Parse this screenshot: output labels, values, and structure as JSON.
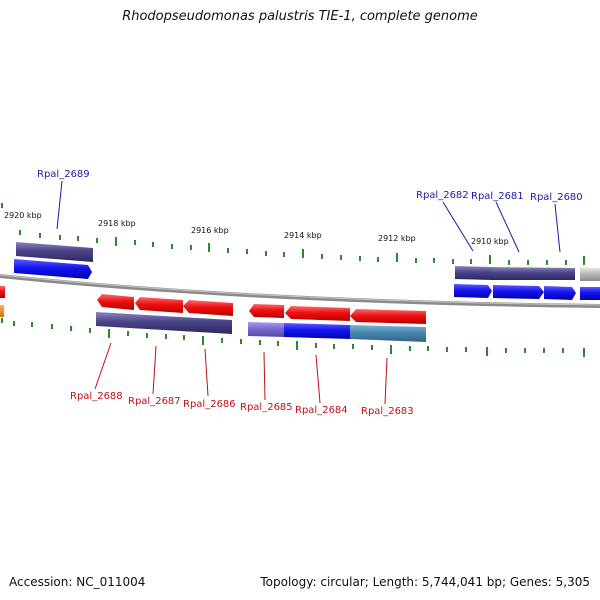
{
  "title": "Rhodopseudomonas palustris TIE-1, complete genome",
  "footer": {
    "accession": "Accession: NC_011004",
    "summary": "Topology: circular; Length: 5,744,041 bp; Genes: 5,305"
  },
  "colors": {
    "background": "#ffffff",
    "forward_label": "#1a1aa6",
    "reverse_label": "#c0101a",
    "gene_red": "#ee1111",
    "gene_blue": "#1515ee",
    "gene_navy": "#4a4488",
    "gene_lilac": "#7a6ad0",
    "gene_teal": "#4a88b0",
    "gene_gray": "#b8b8b8",
    "gene_orange": "#ff8800",
    "tick_green": "#2a8a2a",
    "backbone": "#8a8a8a"
  },
  "scale_labels": [
    "2920 kbp",
    "2918 kbp",
    "2916 kbp",
    "2914 kbp",
    "2912 kbp",
    "2910 kbp"
  ],
  "forward_genes": [
    "Rpal_2689",
    "Rpal_2682",
    "Rpal_2681",
    "Rpal_2680"
  ],
  "reverse_genes": [
    "Rpal_2688",
    "Rpal_2687",
    "Rpal_2686",
    "Rpal_2685",
    "Rpal_2684",
    "Rpal_2683"
  ]
}
